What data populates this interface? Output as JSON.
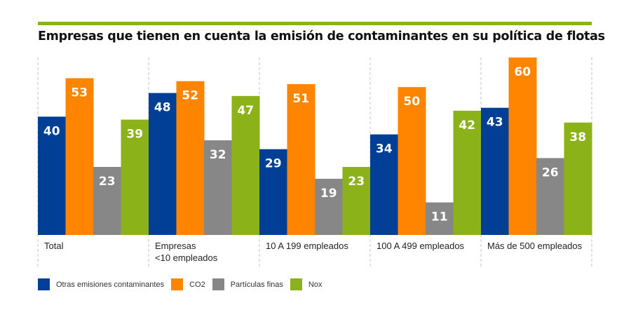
{
  "chart_data": {
    "type": "bar",
    "title": "Empresas que tienen en cuenta la emisión de contaminantes en su política de flotas",
    "categories": [
      "Total",
      "Empresas\n<10 empleados",
      "10 A 199 empleados",
      "100 A 499 empleados",
      "Más de 500 empleados"
    ],
    "category_lines": [
      [
        "Total"
      ],
      [
        "Empresas",
        "<10 empleados"
      ],
      [
        "10 A 199 empleados"
      ],
      [
        "100 A 499 empleados"
      ],
      [
        "Más de 500 empleados"
      ]
    ],
    "series": [
      {
        "name": "Otras emisiones contaminantes",
        "color": "#003f95",
        "values": [
          40,
          48,
          29,
          34,
          43
        ]
      },
      {
        "name": "CO2",
        "color": "#ff8500",
        "values": [
          53,
          52,
          51,
          50,
          60
        ]
      },
      {
        "name": "Partículas finas",
        "color": "#878787",
        "values": [
          23,
          32,
          19,
          11,
          26
        ]
      },
      {
        "name": "Nox",
        "color": "#8cb219",
        "values": [
          39,
          47,
          23,
          42,
          38
        ]
      }
    ],
    "xlabel": "",
    "ylabel": "",
    "ylim": [
      0,
      60
    ],
    "grid": false,
    "legend_position": "bottom-left",
    "data_labels": true
  },
  "legend": {
    "items": [
      {
        "label": "Otras emisiones contaminantes",
        "color": "#003f95"
      },
      {
        "label": "CO2",
        "color": "#ff8500"
      },
      {
        "label": "Partículas finas",
        "color": "#878787"
      },
      {
        "label": "Nox",
        "color": "#8cb219"
      }
    ]
  },
  "colors": {
    "accent_line": "#8cb219"
  }
}
